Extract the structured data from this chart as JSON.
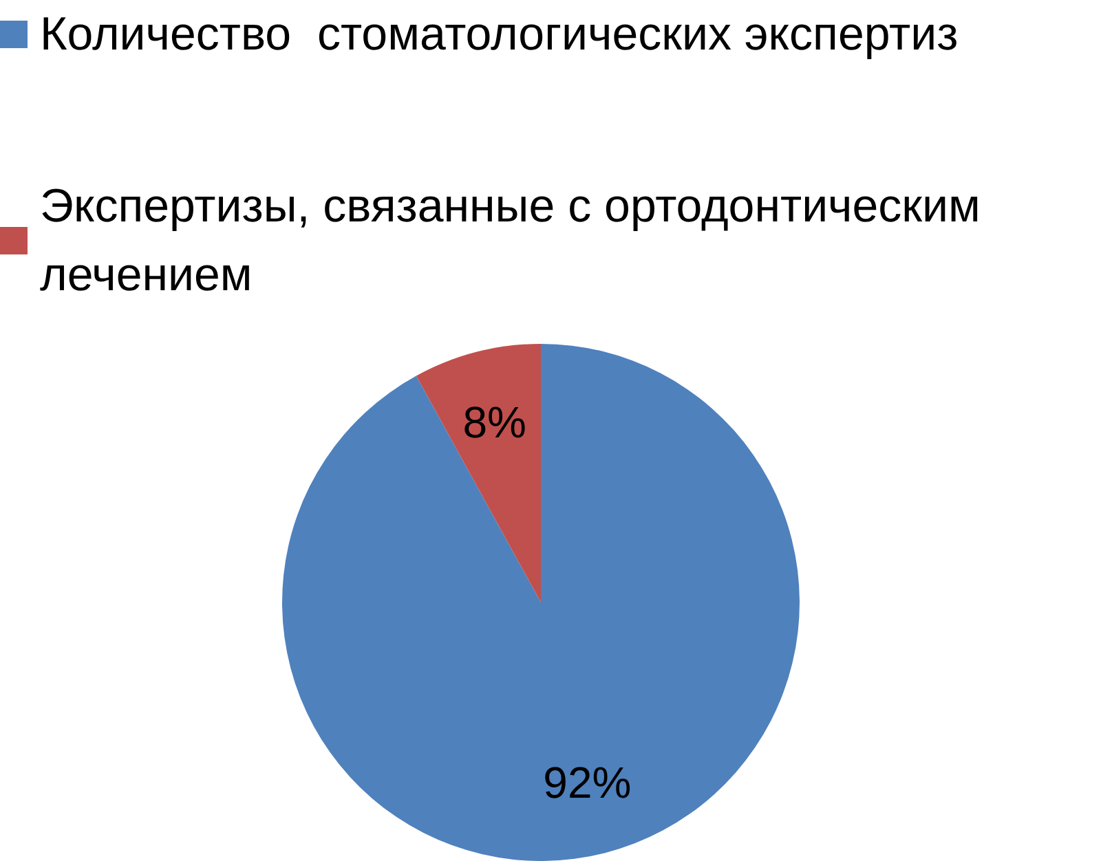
{
  "chart_data": {
    "type": "pie",
    "categories": [
      "Количество  стоматологических экспертиз",
      "Экспертизы, связанные с ортодонтическим лечением"
    ],
    "values": [
      92,
      8
    ],
    "colors": [
      "#4f81bd",
      "#c0504d"
    ],
    "value_labels": [
      "92%",
      "8%"
    ],
    "legend": "top left"
  }
}
